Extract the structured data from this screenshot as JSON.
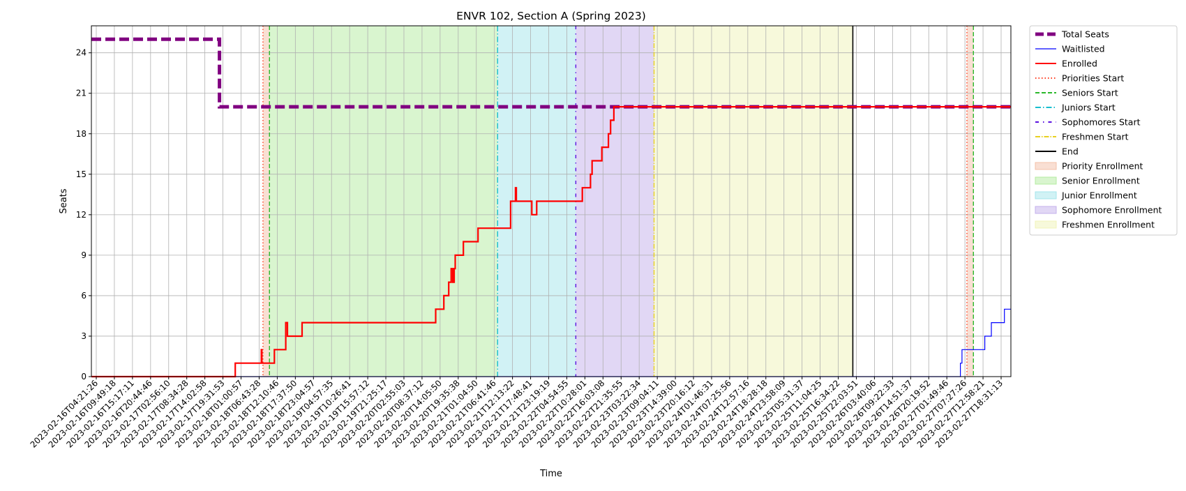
{
  "chart_data": {
    "type": "line",
    "title": "ENVR 102, Section A (Spring 2023)",
    "xlabel": "Time",
    "ylabel": "Seats",
    "ylim": [
      0,
      26
    ],
    "yticks": [
      0,
      3,
      6,
      9,
      12,
      15,
      18,
      21,
      24
    ],
    "xlim": [
      "2023-02-16T04:21:26",
      "2023-02-27T22:30:00"
    ],
    "xtick_labels": [
      "2023-02-16T04:21:26",
      "2023-02-16T09:49:18",
      "2023-02-16T15:17:11",
      "2023-02-16T20:44:46",
      "2023-02-17T02:56:10",
      "2023-02-17T08:34:28",
      "2023-02-17T14:02:58",
      "2023-02-17T19:31:53",
      "2023-02-18T01:00:57",
      "2023-02-18T06:43:28",
      "2023-02-18T12:10:46",
      "2023-02-18T17:37:50",
      "2023-02-18T23:04:57",
      "2023-02-19T04:57:35",
      "2023-02-19T10:26:41",
      "2023-02-19T15:57:12",
      "2023-02-19T21:25:17",
      "2023-02-20T02:55:03",
      "2023-02-20T08:37:12",
      "2023-02-20T14:05:50",
      "2023-02-20T19:35:38",
      "2023-02-21T01:04:50",
      "2023-02-21T06:41:46",
      "2023-02-21T12:13:22",
      "2023-02-21T17:48:41",
      "2023-02-21T23:19:19",
      "2023-02-22T04:54:55",
      "2023-02-22T10:28:01",
      "2023-02-22T16:03:08",
      "2023-02-22T21:35:55",
      "2023-02-23T03:22:34",
      "2023-02-23T09:04:11",
      "2023-02-23T14:39:00",
      "2023-02-23T20:16:12",
      "2023-02-24T01:46:31",
      "2023-02-24T07:25:56",
      "2023-02-24T12:57:16",
      "2023-02-24T18:28:18",
      "2023-02-24T23:58:09",
      "2023-02-25T05:31:37",
      "2023-02-25T11:04:25",
      "2023-02-25T16:34:22",
      "2023-02-25T22:03:51",
      "2023-02-26T03:40:06",
      "2023-02-26T09:22:33",
      "2023-02-26T14:51:37",
      "2023-02-26T20:19:52",
      "2023-02-27T01:49:46",
      "2023-02-27T07:27:26",
      "2023-02-27T12:58:21",
      "2023-02-27T18:31:13"
    ],
    "grid": true,
    "legend_position": "outside-right",
    "spans": [
      {
        "name": "Priority Enrollment",
        "start": "2023-02-18T09:00:00",
        "end": "2023-02-18T11:00:00",
        "color": "#f4c0a8"
      },
      {
        "name": "Senior Enrollment",
        "start": "2023-02-18T11:00:00",
        "end": "2023-02-21T09:00:00",
        "color": "#b4eca0"
      },
      {
        "name": "Junior Enrollment",
        "start": "2023-02-21T09:00:00",
        "end": "2023-02-22T09:00:00",
        "color": "#a4e6ec"
      },
      {
        "name": "Sophomore Enrollment",
        "start": "2023-02-22T09:00:00",
        "end": "2023-02-23T09:00:00",
        "color": "#c4b0ec"
      },
      {
        "name": "Freshmen Enrollment",
        "start": "2023-02-23T09:00:00",
        "end": "2023-02-25T22:00:00",
        "color": "#f0f4b8"
      },
      {
        "name": "Priority Enrollment",
        "start": "2023-02-27T09:00:00",
        "end": "2023-02-27T11:00:00",
        "color": "#f4c0a8"
      }
    ],
    "vlines": [
      {
        "name": "Priorities Start",
        "x": "2023-02-18T09:00:00",
        "color": "#ff3b1f",
        "style": "dotted"
      },
      {
        "name": "Seniors Start",
        "x": "2023-02-18T11:00:00",
        "color": "#2ab82a",
        "style": "dashed"
      },
      {
        "name": "Juniors Start",
        "x": "2023-02-21T09:00:00",
        "color": "#17becf",
        "style": "dashdot"
      },
      {
        "name": "Sophomores Start",
        "x": "2023-02-22T09:00:00",
        "color": "#5a10e0",
        "style": "loosedashdot"
      },
      {
        "name": "Freshmen Start",
        "x": "2023-02-23T09:00:00",
        "color": "#e8d020",
        "style": "densedashdot"
      },
      {
        "name": "End",
        "x": "2023-02-25T22:00:00",
        "color": "#000000",
        "style": "solid"
      },
      {
        "name": "Priorities Start",
        "x": "2023-02-27T09:00:00",
        "color": "#ff3b1f",
        "style": "dotted"
      },
      {
        "name": "Seniors Start",
        "x": "2023-02-27T11:00:00",
        "color": "#2ab82a",
        "style": "dashed"
      }
    ],
    "series": [
      {
        "name": "Total Seats",
        "color": "#800080",
        "style": "thickdashed",
        "points": [
          [
            "2023-02-16T04:21:26",
            25
          ],
          [
            "2023-02-17T19:40:00",
            25
          ],
          [
            "2023-02-17T19:40:00",
            20
          ],
          [
            "2023-02-27T22:30:00",
            20
          ]
        ]
      },
      {
        "name": "Waitlisted",
        "color": "#0000ff",
        "style": "thin",
        "points": [
          [
            "2023-02-16T04:21:26",
            0
          ],
          [
            "2023-02-27T07:00:00",
            0
          ],
          [
            "2023-02-27T07:00:00",
            1
          ],
          [
            "2023-02-27T07:30:00",
            1
          ],
          [
            "2023-02-27T07:30:00",
            2
          ],
          [
            "2023-02-27T14:30:00",
            2
          ],
          [
            "2023-02-27T14:30:00",
            3
          ],
          [
            "2023-02-27T16:30:00",
            3
          ],
          [
            "2023-02-27T16:30:00",
            4
          ],
          [
            "2023-02-27T20:30:00",
            4
          ],
          [
            "2023-02-27T20:30:00",
            5
          ],
          [
            "2023-02-27T22:30:00",
            5
          ]
        ]
      },
      {
        "name": "Enrolled",
        "color": "#ff0000",
        "style": "solid",
        "points": [
          [
            "2023-02-16T04:21:26",
            0
          ],
          [
            "2023-02-18T00:30:00",
            0
          ],
          [
            "2023-02-18T00:30:00",
            1
          ],
          [
            "2023-02-18T08:30:00",
            1
          ],
          [
            "2023-02-18T08:30:00",
            2
          ],
          [
            "2023-02-18T08:40:00",
            2
          ],
          [
            "2023-02-18T08:40:00",
            1
          ],
          [
            "2023-02-18T12:30:00",
            1
          ],
          [
            "2023-02-18T12:30:00",
            2
          ],
          [
            "2023-02-18T16:00:00",
            2
          ],
          [
            "2023-02-18T16:00:00",
            4
          ],
          [
            "2023-02-18T16:30:00",
            4
          ],
          [
            "2023-02-18T16:30:00",
            3
          ],
          [
            "2023-02-18T21:00:00",
            3
          ],
          [
            "2023-02-18T21:00:00",
            4
          ],
          [
            "2023-02-20T14:00:00",
            4
          ],
          [
            "2023-02-20T14:00:00",
            5
          ],
          [
            "2023-02-20T16:30:00",
            5
          ],
          [
            "2023-02-20T16:30:00",
            6
          ],
          [
            "2023-02-20T18:00:00",
            6
          ],
          [
            "2023-02-20T18:00:00",
            7
          ],
          [
            "2023-02-20T18:45:00",
            7
          ],
          [
            "2023-02-20T18:45:00",
            8
          ],
          [
            "2023-02-20T19:15:00",
            8
          ],
          [
            "2023-02-20T19:15:00",
            7
          ],
          [
            "2023-02-20T19:40:00",
            7
          ],
          [
            "2023-02-20T19:40:00",
            8
          ],
          [
            "2023-02-20T20:00:00",
            8
          ],
          [
            "2023-02-20T20:00:00",
            9
          ],
          [
            "2023-02-20T22:30:00",
            9
          ],
          [
            "2023-02-20T22:30:00",
            10
          ],
          [
            "2023-02-21T03:00:00",
            10
          ],
          [
            "2023-02-21T03:00:00",
            11
          ],
          [
            "2023-02-21T13:00:00",
            11
          ],
          [
            "2023-02-21T13:00:00",
            13
          ],
          [
            "2023-02-21T14:30:00",
            13
          ],
          [
            "2023-02-21T14:30:00",
            14
          ],
          [
            "2023-02-21T14:45:00",
            14
          ],
          [
            "2023-02-21T14:45:00",
            13
          ],
          [
            "2023-02-21T19:30:00",
            13
          ],
          [
            "2023-02-21T19:30:00",
            12
          ],
          [
            "2023-02-21T21:00:00",
            12
          ],
          [
            "2023-02-21T21:00:00",
            13
          ],
          [
            "2023-02-22T11:00:00",
            13
          ],
          [
            "2023-02-22T11:00:00",
            14
          ],
          [
            "2023-02-22T13:30:00",
            14
          ],
          [
            "2023-02-22T13:30:00",
            15
          ],
          [
            "2023-02-22T14:00:00",
            15
          ],
          [
            "2023-02-22T14:00:00",
            16
          ],
          [
            "2023-02-22T17:00:00",
            16
          ],
          [
            "2023-02-22T17:00:00",
            17
          ],
          [
            "2023-02-22T19:00:00",
            17
          ],
          [
            "2023-02-22T19:00:00",
            18
          ],
          [
            "2023-02-22T19:40:00",
            18
          ],
          [
            "2023-02-22T19:40:00",
            19
          ],
          [
            "2023-02-22T20:40:00",
            19
          ],
          [
            "2023-02-22T20:40:00",
            20
          ],
          [
            "2023-02-27T22:30:00",
            20
          ]
        ]
      }
    ],
    "legend": [
      {
        "label": "Total Seats",
        "kind": "line",
        "color": "#800080",
        "style": "thickdashed"
      },
      {
        "label": "Waitlisted",
        "kind": "line",
        "color": "#0000ff",
        "style": "thin"
      },
      {
        "label": "Enrolled",
        "kind": "line",
        "color": "#ff0000",
        "style": "solid"
      },
      {
        "label": "Priorities Start",
        "kind": "line",
        "color": "#ff3b1f",
        "style": "dotted"
      },
      {
        "label": "Seniors Start",
        "kind": "line",
        "color": "#2ab82a",
        "style": "dashed"
      },
      {
        "label": "Juniors Start",
        "kind": "line",
        "color": "#17becf",
        "style": "dashdot"
      },
      {
        "label": "Sophomores Start",
        "kind": "line",
        "color": "#5a10e0",
        "style": "loosedashdot"
      },
      {
        "label": "Freshmen Start",
        "kind": "line",
        "color": "#e8d020",
        "style": "densedashdot"
      },
      {
        "label": "End",
        "kind": "line",
        "color": "#000000",
        "style": "solid"
      },
      {
        "label": "Priority Enrollment",
        "kind": "patch",
        "color": "#f4c0a8"
      },
      {
        "label": "Senior Enrollment",
        "kind": "patch",
        "color": "#b4eca0"
      },
      {
        "label": "Junior Enrollment",
        "kind": "patch",
        "color": "#a4e6ec"
      },
      {
        "label": "Sophomore Enrollment",
        "kind": "patch",
        "color": "#c4b0ec"
      },
      {
        "label": "Freshmen Enrollment",
        "kind": "patch",
        "color": "#f0f4b8"
      }
    ]
  }
}
